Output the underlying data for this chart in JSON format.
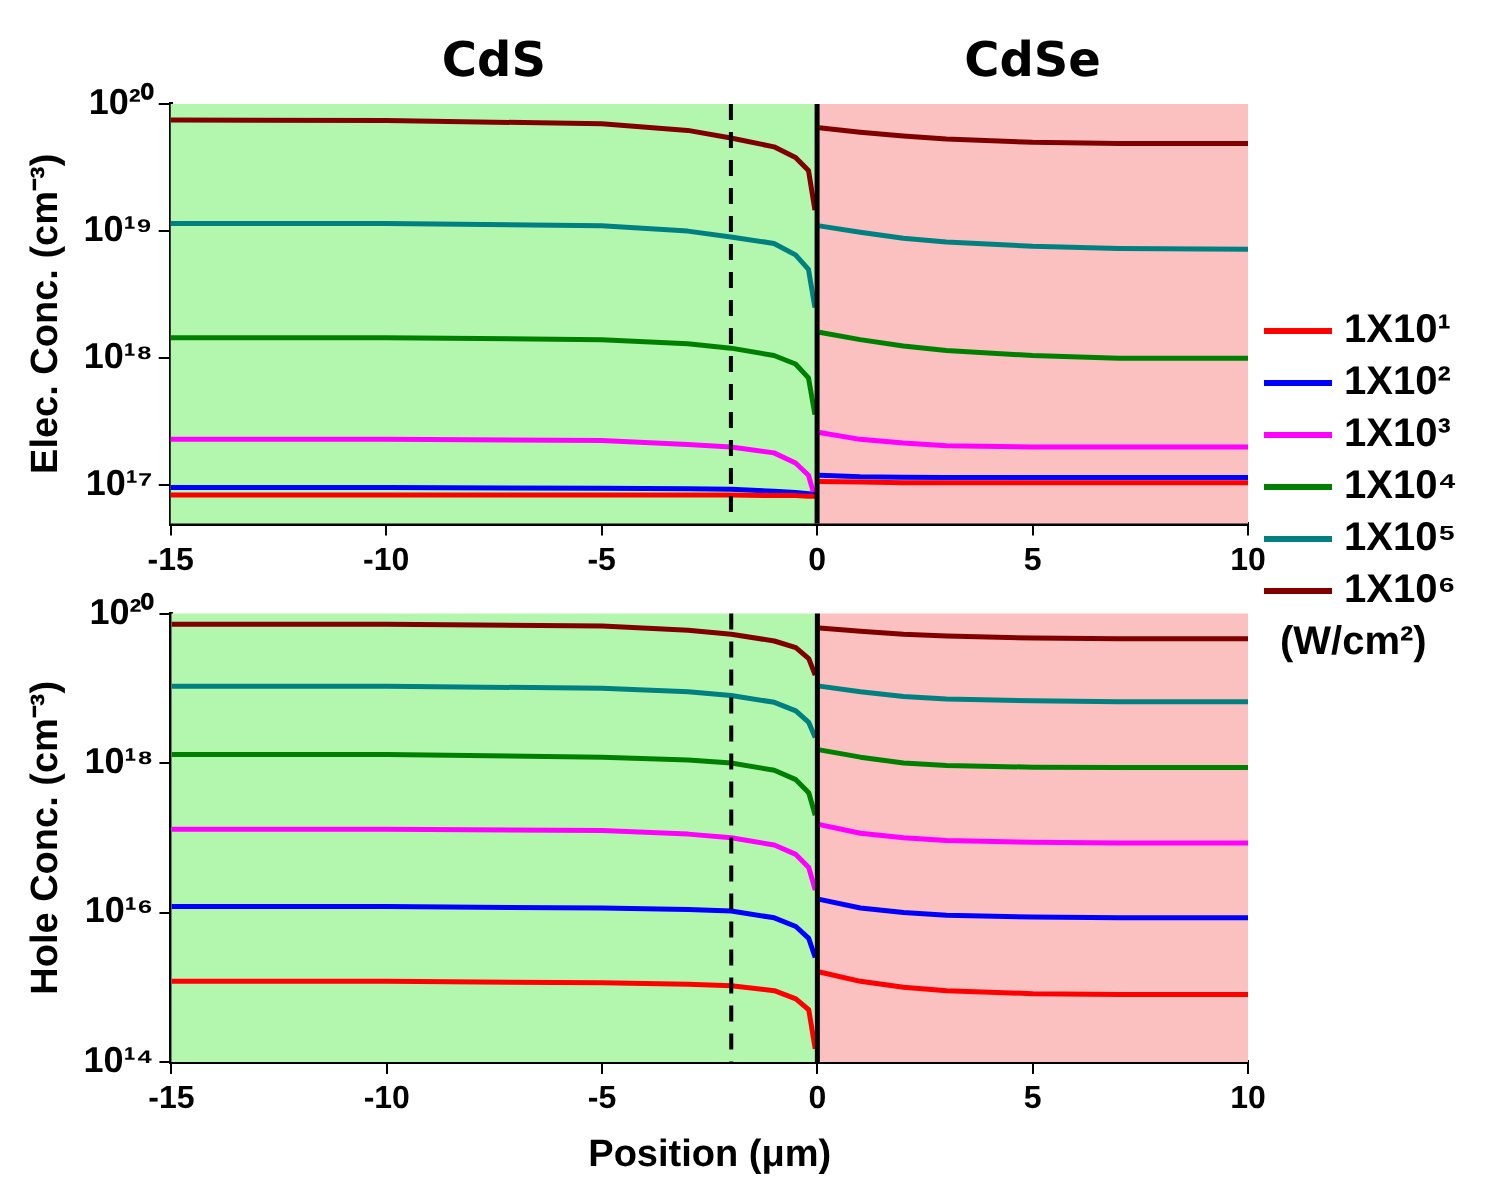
{
  "chart_data": [
    {
      "type": "line",
      "ylabel": "Elec. Conc. (cm⁻³)",
      "x": [
        -15,
        -10,
        -5,
        -3,
        -2,
        -1,
        -0.5,
        -0.2,
        -0.05,
        0,
        0.05,
        1,
        2,
        3,
        5,
        7,
        10
      ],
      "xlim": [
        -15,
        10
      ],
      "xticks": [
        -15,
        -10,
        -5,
        0,
        5,
        10
      ],
      "log": "y",
      "ylim": [
        5e+16,
        1e+20
      ],
      "yticks": [
        {
          "value": 1e+17,
          "label": "10¹⁷"
        },
        {
          "value": 1e+18,
          "label": "10¹⁸"
        },
        {
          "value": 1e+19,
          "label": "10¹⁹"
        },
        {
          "value": 1e+20,
          "label": "10²⁰"
        }
      ],
      "grid": false,
      "legend": "right",
      "legend_title": "(W/cm²)",
      "bands": [
        {
          "axis": "x",
          "from": -15,
          "to": 0,
          "label": "CdS",
          "color": "#b3f7ae"
        },
        {
          "axis": "x",
          "from": 0,
          "to": 10,
          "label": "CdSe",
          "color": "#fbc0c0"
        }
      ],
      "ref_lines": [
        {
          "axis": "x",
          "value": -2,
          "color": "#000000",
          "line_style": "dashed"
        },
        {
          "axis": "x",
          "value": 0,
          "color": "#000000",
          "line_style": "solid"
        }
      ],
      "series": [
        {
          "name": "1X10¹",
          "color": "#ff0000",
          "values": [
            8.4e+16,
            8.4e+16,
            8.4e+16,
            8.4e+16,
            8.4e+16,
            8.3e+16,
            8.3e+16,
            8.2e+16,
            8.2e+16,
            null,
            1.07e+17,
            1.06e+17,
            1.05e+17,
            1.05e+17,
            1.05e+17,
            1.05e+17,
            1.05e+17
          ]
        },
        {
          "name": "1X10²",
          "color": "#0000ff",
          "values": [
            9.6e+16,
            9.6e+16,
            9.5e+16,
            9.4e+16,
            9.3e+16,
            9e+16,
            8.8e+16,
            8.6e+16,
            8.4e+16,
            null,
            1.2e+17,
            1.17e+17,
            1.16e+17,
            1.15e+17,
            1.15e+17,
            1.15e+17,
            1.15e+17
          ]
        },
        {
          "name": "1X10³",
          "color": "#ff00ff",
          "values": [
            2.3e+17,
            2.3e+17,
            2.25e+17,
            2.1e+17,
            2e+17,
            1.8e+17,
            1.5e+17,
            1.2e+17,
            8e+16,
            null,
            2.6e+17,
            2.3e+17,
            2.15e+17,
            2.05e+17,
            2e+17,
            2e+17,
            2e+17
          ]
        },
        {
          "name": "1X10⁴",
          "color": "#008000",
          "values": [
            1.45e+18,
            1.45e+18,
            1.4e+18,
            1.3e+18,
            1.2e+18,
            1.05e+18,
            9e+17,
            7e+17,
            3.6e+17,
            null,
            1.6e+18,
            1.4e+18,
            1.25e+18,
            1.15e+18,
            1.05e+18,
            1e+18,
            1e+18
          ]
        },
        {
          "name": "1X10⁵",
          "color": "#008080",
          "values": [
            1.15e+19,
            1.15e+19,
            1.1e+19,
            1e+19,
            9e+18,
            8e+18,
            6.5e+18,
            5e+18,
            2.5e+18,
            null,
            1.1e+19,
            9.8e+18,
            8.8e+18,
            8.2e+18,
            7.6e+18,
            7.3e+18,
            7.2e+18
          ]
        },
        {
          "name": "1X10⁶",
          "color": "#800000",
          "values": [
            7.5e+19,
            7.4e+19,
            7e+19,
            6.2e+19,
            5.4e+19,
            4.6e+19,
            3.8e+19,
            3e+19,
            1.46e+19,
            null,
            6.5e+19,
            6e+19,
            5.6e+19,
            5.3e+19,
            5e+19,
            4.9e+19,
            4.9e+19
          ]
        }
      ]
    },
    {
      "type": "line",
      "ylabel": "Hole Conc. (cm⁻³)",
      "xlabel": "Position (μm)",
      "x": [
        -15,
        -10,
        -5,
        -3,
        -2,
        -1,
        -0.5,
        -0.2,
        -0.05,
        0,
        0.05,
        1,
        2,
        3,
        5,
        7,
        10
      ],
      "xlim": [
        -15,
        10
      ],
      "xticks": [
        -15,
        -10,
        -5,
        0,
        5,
        10
      ],
      "log": "y",
      "ylim": [
        100000000000000.0,
        1e+20
      ],
      "yticks": [
        {
          "value": 100000000000000.0,
          "label": "10¹⁴"
        },
        {
          "value": 1e+16,
          "label": "10¹⁶"
        },
        {
          "value": 1e+18,
          "label": "10¹⁸"
        },
        {
          "value": 1e+20,
          "label": "10²⁰"
        }
      ],
      "grid": false,
      "bands": [
        {
          "axis": "x",
          "from": -15,
          "to": 0,
          "color": "#b3f7ae"
        },
        {
          "axis": "x",
          "from": 0,
          "to": 10,
          "color": "#fbc0c0"
        }
      ],
      "ref_lines": [
        {
          "axis": "x",
          "value": -2,
          "color": "#000000",
          "line_style": "dashed"
        },
        {
          "axis": "x",
          "value": 0,
          "color": "#000000",
          "line_style": "solid"
        }
      ],
      "series": [
        {
          "color": "#ff0000",
          "values": [
            1200000000000000.0,
            1200000000000000.0,
            1150000000000000.0,
            1100000000000000.0,
            1050000000000000.0,
            900000000000000.0,
            700000000000000.0,
            500000000000000.0,
            150000000000000.0,
            null,
            1600000000000000.0,
            1200000000000000.0,
            1000000000000000.0,
            900000000000000.0,
            820000000000000.0,
            800000000000000.0,
            800000000000000.0
          ]
        },
        {
          "color": "#0000ff",
          "values": [
            1.2e+16,
            1.2e+16,
            1.15e+16,
            1.1e+16,
            1.05e+16,
            8500000000000000.0,
            6500000000000000.0,
            4500000000000000.0,
            2500000000000000.0,
            null,
            1.5e+16,
            1.15e+16,
            1e+16,
            9200000000000000.0,
            8700000000000000.0,
            8500000000000000.0,
            8500000000000000.0
          ]
        },
        {
          "color": "#ff00ff",
          "values": [
            1.3e+17,
            1.3e+17,
            1.25e+17,
            1.12e+17,
            1e+17,
            8e+16,
            6e+16,
            4e+16,
            2e+16,
            null,
            1.5e+17,
            1.15e+17,
            1e+17,
            9.2e+16,
            8.7e+16,
            8.5e+16,
            8.5e+16
          ]
        },
        {
          "color": "#008000",
          "values": [
            1.3e+18,
            1.3e+18,
            1.2e+18,
            1.1e+18,
            1e+18,
            8e+17,
            6e+17,
            4e+17,
            2e+17,
            null,
            1.5e+18,
            1.2e+18,
            1e+18,
            9.3e+17,
            8.8e+17,
            8.7e+17,
            8.7e+17
          ]
        },
        {
          "color": "#008080",
          "values": [
            1.07e+19,
            1.07e+19,
            1e+19,
            9e+18,
            8e+18,
            6.5e+18,
            5e+18,
            3.5e+18,
            2.2e+18,
            null,
            1.07e+19,
            9e+18,
            7.8e+18,
            7.2e+18,
            6.8e+18,
            6.6e+18,
            6.6e+18
          ]
        },
        {
          "color": "#800000",
          "values": [
            7.2e+19,
            7.2e+19,
            6.8e+19,
            6e+19,
            5.3e+19,
            4.3e+19,
            3.5e+19,
            2.5e+19,
            1.5e+19,
            null,
            6.4e+19,
            5.8e+19,
            5.3e+19,
            5e+19,
            4.7e+19,
            4.6e+19,
            4.6e+19
          ]
        }
      ]
    }
  ]
}
